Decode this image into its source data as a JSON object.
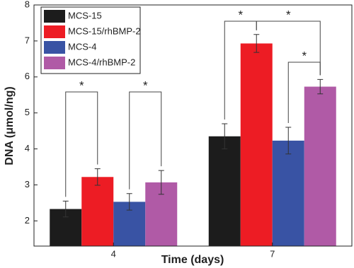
{
  "chart_data": {
    "type": "bar",
    "x_label": "Time (days)",
    "y_label": "DNA (μmol/ng)",
    "categories": [
      "4",
      "7"
    ],
    "series": [
      {
        "name": "MCS-15",
        "color": "#1c1c1c",
        "values": [
          2.33,
          4.35
        ],
        "errors": [
          0.22,
          0.35
        ]
      },
      {
        "name": "MCS-15/rhBMP-2",
        "color": "#ed1c24",
        "values": [
          3.22,
          6.93
        ],
        "errors": [
          0.23,
          0.25
        ]
      },
      {
        "name": "MCS-4",
        "color": "#3953a4",
        "values": [
          2.53,
          4.23
        ],
        "errors": [
          0.23,
          0.37
        ]
      },
      {
        "name": "MCS-4/rhBMP-2",
        "color": "#b05aa6",
        "values": [
          3.07,
          5.73
        ],
        "errors": [
          0.33,
          0.2
        ]
      }
    ],
    "significance": [
      "*",
      "*",
      "*",
      "*",
      "*"
    ],
    "ylim": [
      1.3,
      8
    ],
    "yticks": [
      2,
      3,
      4,
      5,
      6,
      7,
      8
    ],
    "legend": "top-left"
  }
}
